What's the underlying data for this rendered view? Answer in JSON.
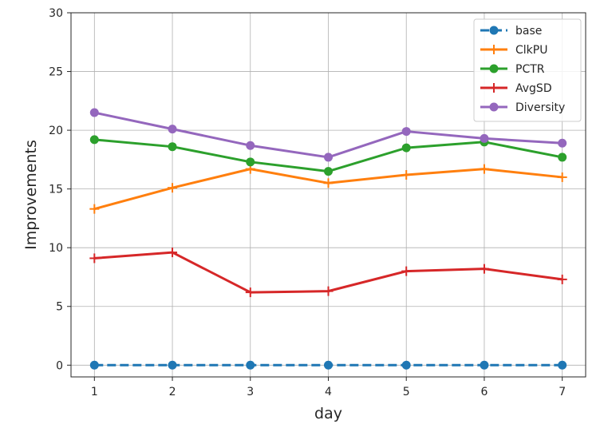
{
  "chart_data": {
    "type": "line",
    "xlabel": "day",
    "ylabel": "Improvements",
    "x": [
      1,
      2,
      3,
      4,
      5,
      6,
      7
    ],
    "xlim": [
      0.7,
      7.3
    ],
    "ylim": [
      -1,
      30
    ],
    "yticks": [
      0,
      5,
      10,
      15,
      20,
      25,
      30
    ],
    "grid": true,
    "legend": "top-right",
    "series": [
      {
        "name": "base",
        "values": [
          0,
          0,
          0,
          0,
          0,
          0,
          0
        ],
        "color": "#1f77b4",
        "marker": "circle",
        "dashed": true
      },
      {
        "name": "ClkPU",
        "values": [
          13.3,
          15.1,
          16.7,
          15.5,
          16.2,
          16.7,
          16.0
        ],
        "color": "#ff7f0e",
        "marker": "plus",
        "dashed": false
      },
      {
        "name": "PCTR",
        "values": [
          19.2,
          18.6,
          17.3,
          16.5,
          18.5,
          19.0,
          17.7
        ],
        "color": "#2ca02c",
        "marker": "circle",
        "dashed": false
      },
      {
        "name": "AvgSD",
        "values": [
          9.1,
          9.6,
          6.2,
          6.3,
          8.0,
          8.2,
          7.3
        ],
        "color": "#d62728",
        "marker": "plus",
        "dashed": false
      },
      {
        "name": "Diversity",
        "values": [
          21.5,
          20.1,
          18.7,
          17.7,
          19.9,
          19.3,
          18.9
        ],
        "color": "#9467bd",
        "marker": "circle",
        "dashed": false
      }
    ]
  }
}
